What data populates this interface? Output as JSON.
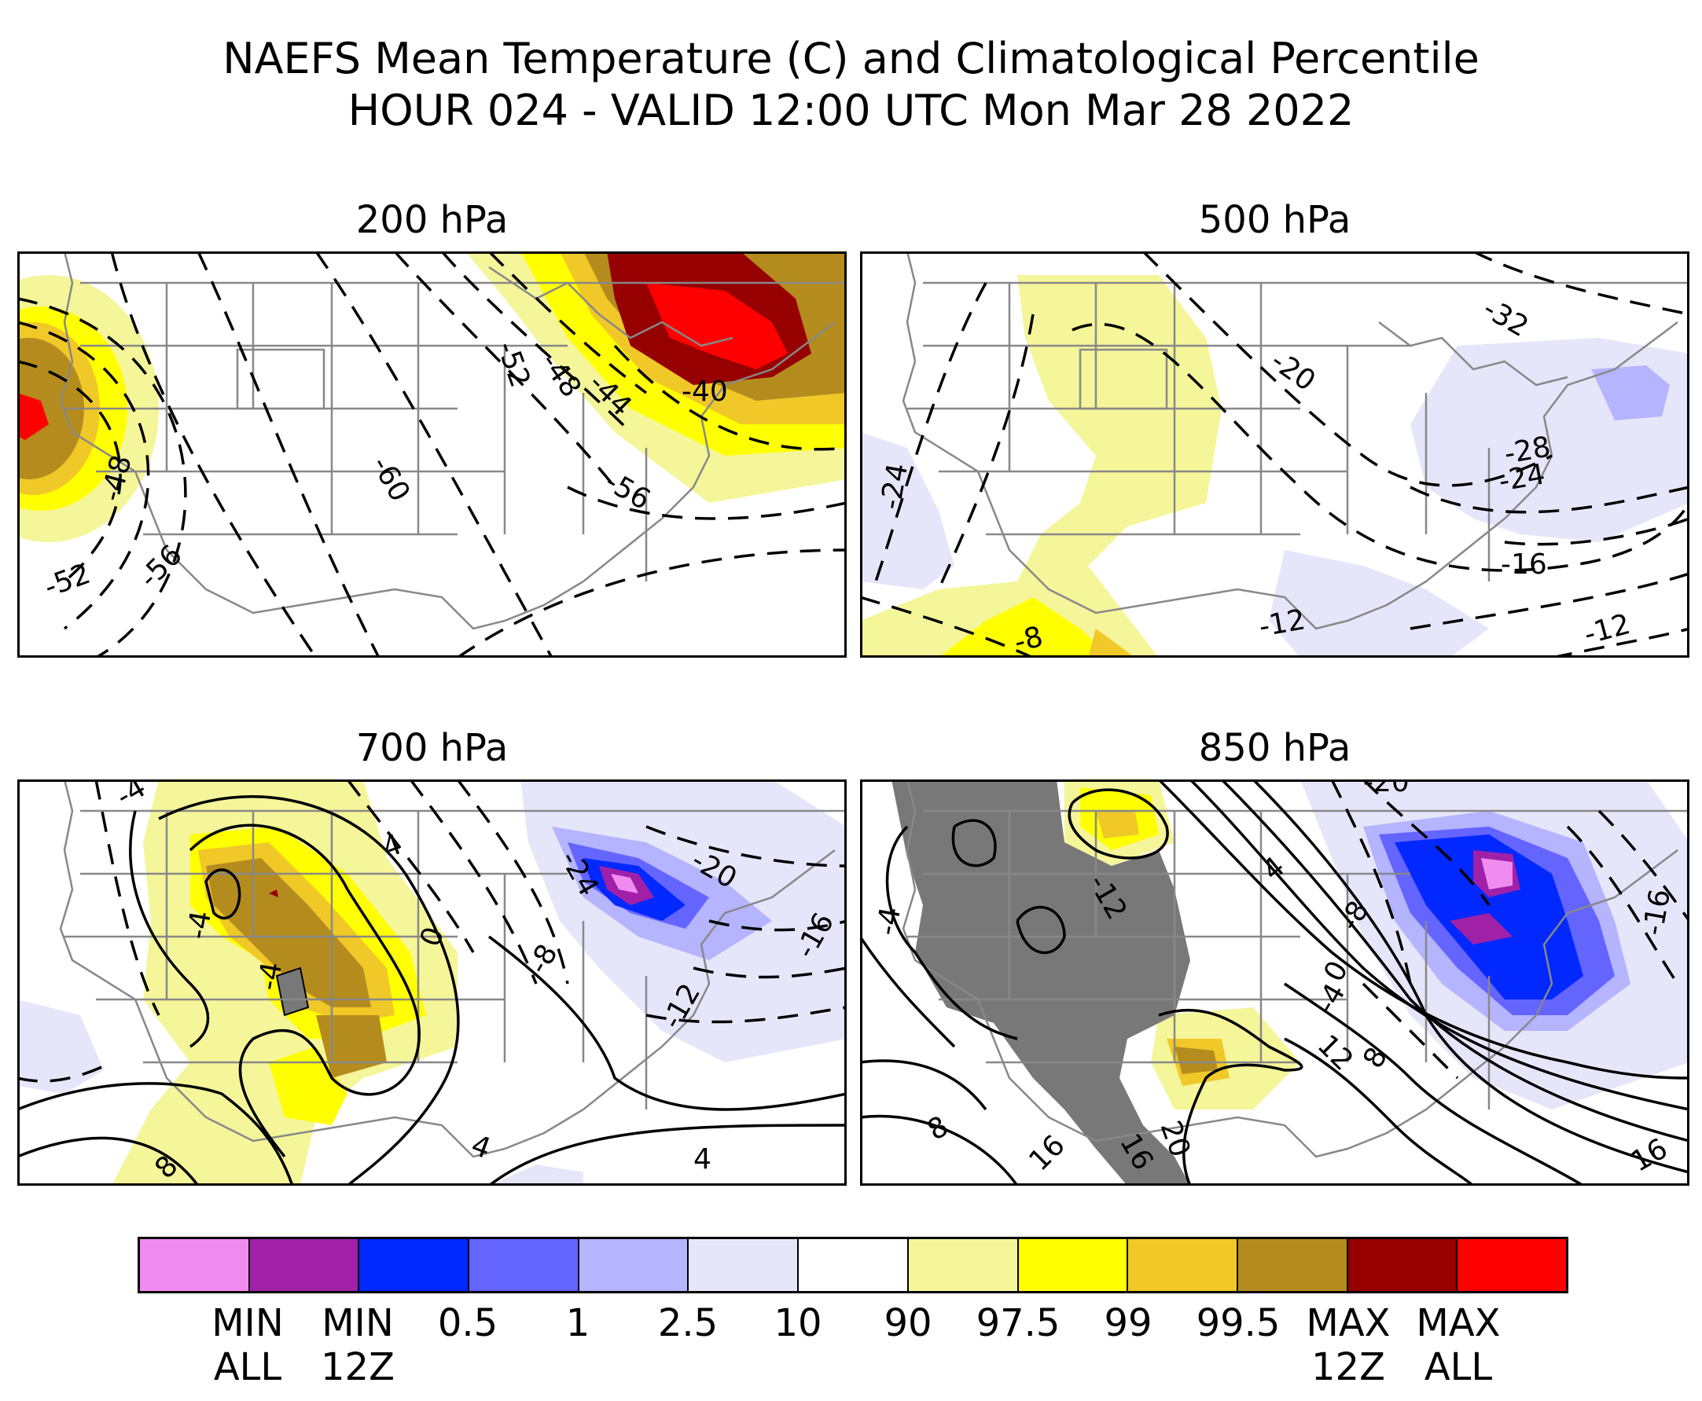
{
  "header": {
    "title": "NAEFS Mean Temperature (C) and Climatological Percentile",
    "subtitle": "HOUR 024 - VALID 12:00 UTC Mon Mar 28 2022"
  },
  "panels": [
    {
      "title": "200 hPa",
      "contour_labels": [
        "-52",
        "-48",
        "-44",
        "-40",
        "-48",
        "-52",
        "-56",
        "-60",
        "-56"
      ]
    },
    {
      "title": "500 hPa",
      "contour_labels": [
        "-32",
        "-20",
        "-24",
        "-28",
        "-24",
        "-16",
        "-12",
        "-12",
        "-8"
      ]
    },
    {
      "title": "700 hPa",
      "contour_labels": [
        "-4",
        "4",
        "-4",
        "-4",
        "0",
        "-8",
        "-24",
        "-20",
        "-16",
        "-12",
        "4",
        "8",
        "4"
      ]
    },
    {
      "title": "850 hPa",
      "contour_labels": [
        "-20",
        "-12",
        "-4",
        "4",
        "-8",
        "0",
        "-4",
        "-16",
        "16",
        "12",
        "8",
        "20",
        "16",
        "8",
        "16",
        "12"
      ]
    }
  ],
  "colors": {
    "percentile_bins": [
      "#f08cf0",
      "#a020a8",
      "#0028ff",
      "#6464ff",
      "#b4b4ff",
      "#e6e6fa",
      "#ffffff",
      "#f5f59a",
      "#ffff00",
      "#f0c828",
      "#b48c1e",
      "#960000",
      "#ff0000"
    ],
    "min_max_grey": "#787878"
  },
  "colorbar": {
    "labels": [
      "MIN\nALL",
      "MIN\n12Z",
      "0.5",
      "1",
      "2.5",
      "10",
      "90",
      "97.5",
      "99",
      "99.5",
      "MAX\n12Z",
      "MAX\nALL"
    ]
  }
}
